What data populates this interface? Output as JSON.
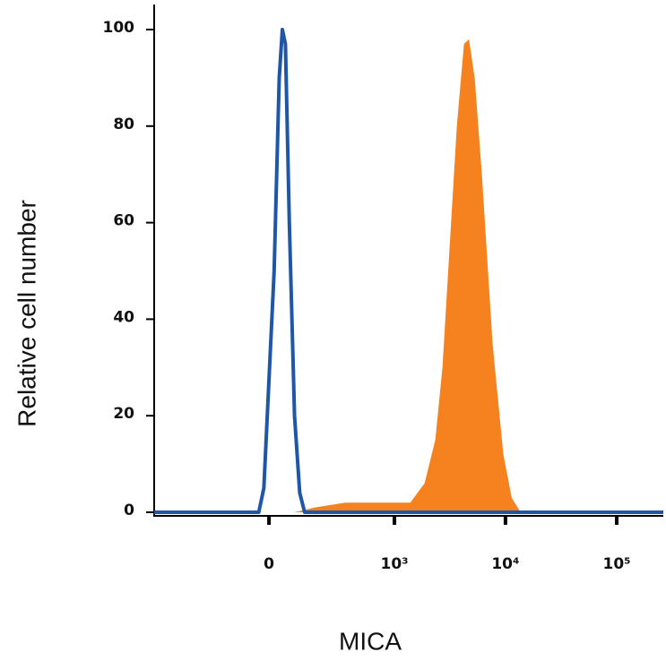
{
  "chart_data": {
    "type": "histogram-overlay",
    "x_label": "MICA",
    "y_label": "Relative cell number",
    "xscale": "biexponential",
    "xlim": [
      -800,
      262144
    ],
    "ylim": [
      0,
      100
    ],
    "xticks": [
      0,
      {
        "value": 1000,
        "label": "10³"
      },
      {
        "value": 10000,
        "label": "10⁴"
      },
      {
        "value": 100000,
        "label": "10⁵"
      }
    ],
    "yticks": [
      0,
      20,
      40,
      60,
      80,
      100
    ],
    "series": [
      {
        "color": "#f5821f",
        "fill": true,
        "x": [
          83,
          165,
          350,
          843,
          1392,
          1873,
          2340,
          2714,
          3150,
          3655,
          4236,
          4700,
          5290,
          6140,
          7660,
          9570,
          11380,
          13680
        ],
        "values": [
          0,
          1,
          2,
          2,
          2,
          6,
          15,
          30,
          55,
          80,
          97,
          98,
          90,
          70,
          35,
          12,
          3,
          0
        ]
      },
      {
        "color": "#1f57a6",
        "fill": false,
        "x": [
          -800,
          -32,
          -16,
          16,
          32,
          42,
          52,
          65,
          83,
          102,
          121,
          262144
        ],
        "values": [
          0,
          0,
          5,
          50,
          90,
          100,
          97,
          60,
          20,
          4,
          0,
          0
        ]
      }
    ]
  }
}
